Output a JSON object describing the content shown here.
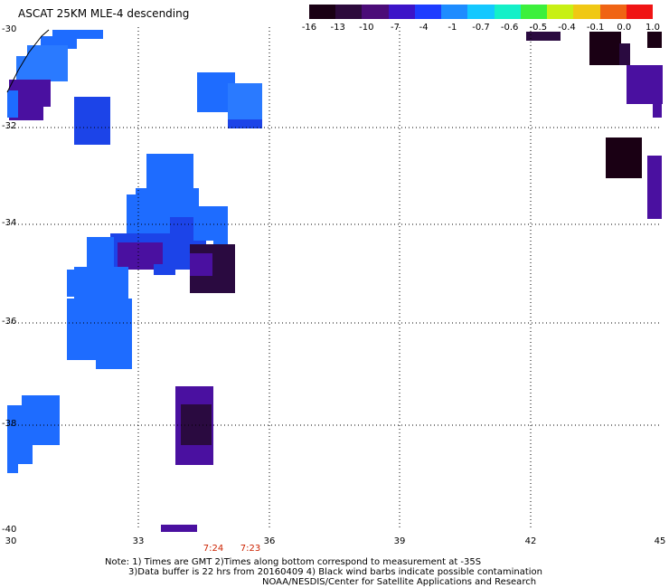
{
  "title": "ASCAT 25KM MLE-4 descending",
  "colorbar": {
    "labels": [
      "-16",
      "-13",
      "-10",
      "-7",
      "-4",
      "-1",
      "-0.7",
      "-0.6",
      "-0.5",
      "-0.4",
      "-0.1",
      "0.0",
      "1.0"
    ],
    "colors": [
      "#1a0014",
      "#2d0a3c",
      "#4b0c78",
      "#3c14c8",
      "#1e3cff",
      "#1e8cff",
      "#14c8ff",
      "#14f0c8",
      "#3cf03c",
      "#c8f014",
      "#f0c814",
      "#f06414",
      "#f01414"
    ]
  },
  "map": {
    "lat_labels": [
      "-30",
      "-32",
      "-34",
      "-36",
      "-38",
      "-40"
    ],
    "lon_labels": [
      "30",
      "33",
      "36",
      "39",
      "42",
      "45"
    ],
    "colors": {
      "blue": "#1e6cff",
      "lightblue": "#2a7aff",
      "deepblue": "#1c44e8",
      "purple": "#4a10a0",
      "darkpurple": "#2a0a40",
      "black": "#1a0014"
    }
  },
  "times": [
    "7:24",
    "7:23"
  ],
  "notes": {
    "line1": "Note: 1) Times are GMT 2)Times along bottom correspond to measurement at -35S",
    "line2": "3)Data buffer is 22 hrs from 20160409 4) Black wind barbs indicate possible contamination",
    "line3": "NOAA/NESDIS/Center for Satellite Applications and Research"
  }
}
